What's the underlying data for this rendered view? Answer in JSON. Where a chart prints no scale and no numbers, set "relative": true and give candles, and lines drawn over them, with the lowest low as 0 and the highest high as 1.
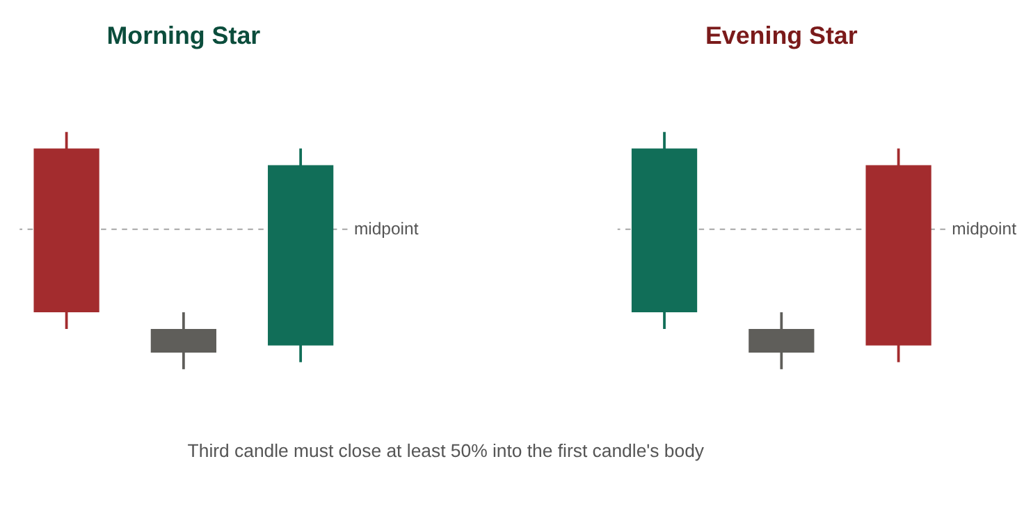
{
  "chart_data": [
    {
      "type": "candlestick",
      "title": "Morning Star",
      "relative": true,
      "categories": [
        null,
        null,
        null
      ],
      "ohlc": [
        [
          0.93,
          1,
          0.17,
          0.24
        ],
        [
          0.17,
          0.24,
          0,
          0.07
        ],
        [
          0.1,
          0.93,
          0.03,
          0.86
        ]
      ],
      "colors": [
        "#a32c2e",
        "#5f5e5a",
        "#116e58"
      ],
      "ref_lines": [
        {
          "axis": "y",
          "value": 0.59,
          "label": "midpoint",
          "color": "#999999",
          "line_style": "dashed"
        }
      ],
      "annotations": [
        "Third candle must close at least 50% into the first candle's body"
      ]
    },
    {
      "type": "candlestick",
      "title": "Evening Star",
      "relative": true,
      "categories": [
        null,
        null,
        null
      ],
      "ohlc": [
        [
          0.24,
          1,
          0.17,
          0.93
        ],
        [
          0.17,
          0.24,
          0,
          0.07
        ],
        [
          0.86,
          0.93,
          0.03,
          0.1
        ]
      ],
      "colors": [
        "#116e58",
        "#5f5e5a",
        "#a32c2e"
      ],
      "ref_lines": [
        {
          "axis": "y",
          "value": 0.59,
          "label": "midpoint",
          "color": "#999999",
          "line_style": "dashed"
        }
      ]
    }
  ]
}
